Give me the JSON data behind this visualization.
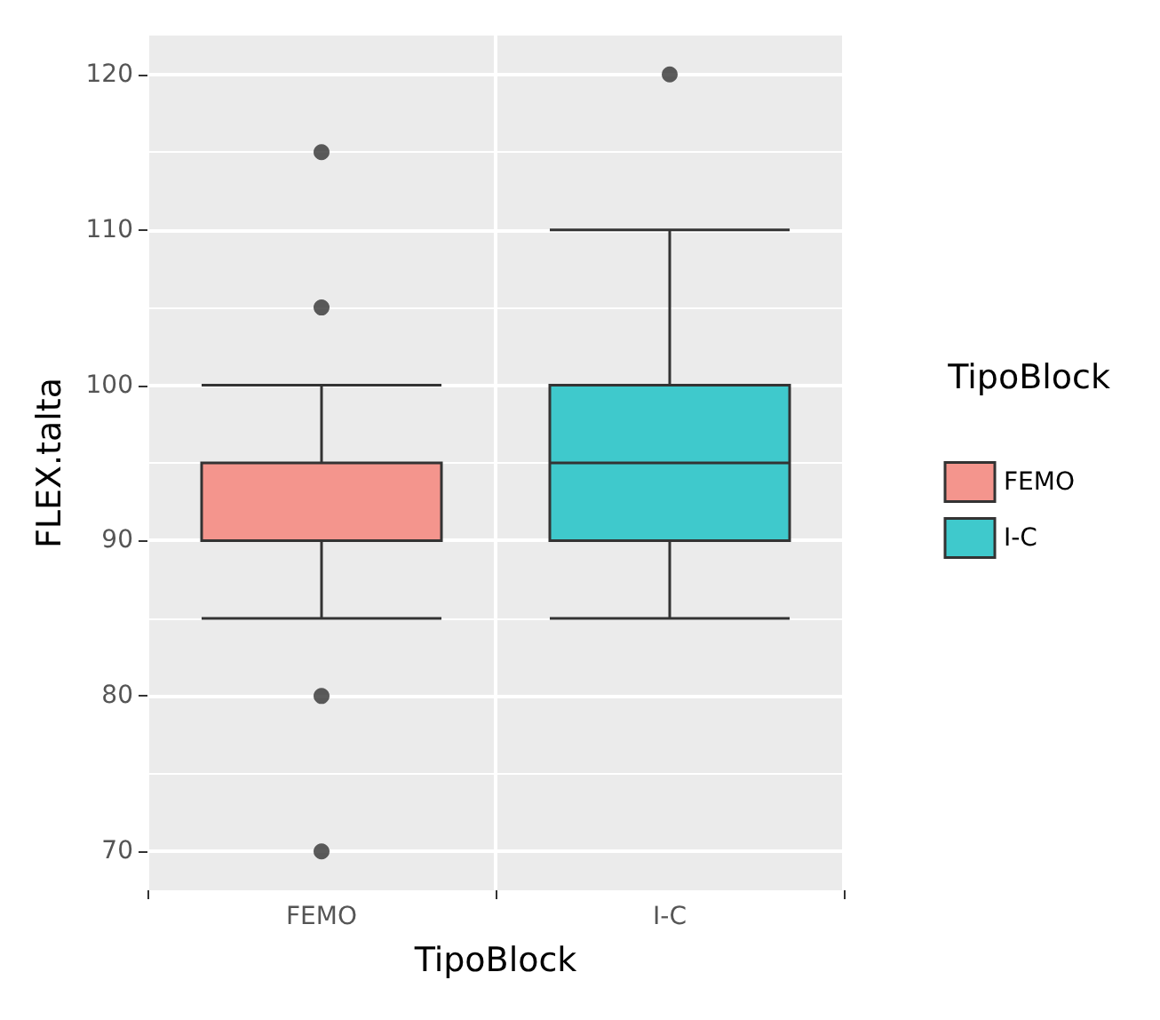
{
  "chart_data": {
    "type": "box",
    "xlabel": "TipoBlock",
    "ylabel": "FLEX.talta",
    "legend_title": "TipoBlock",
    "categories": [
      "FEMO",
      "I-C"
    ],
    "series": [
      {
        "name": "FEMO",
        "color": "#f4958d",
        "boxes": [
          {
            "low": 85,
            "q1": 90,
            "median": 90,
            "q3": 95,
            "high": 100,
            "outliers": [
              70,
              80,
              105,
              115
            ]
          },
          null
        ]
      },
      {
        "name": "I-C",
        "color": "#3fc9cc",
        "boxes": [
          null,
          {
            "low": 85,
            "q1": 90,
            "median": 95,
            "q3": 100,
            "high": 110,
            "outliers": [
              120
            ]
          }
        ]
      }
    ],
    "ylim": [
      67.5,
      122.5
    ],
    "yticks": [
      70,
      80,
      90,
      100,
      110,
      120
    ],
    "grid": true,
    "legend": "right"
  }
}
